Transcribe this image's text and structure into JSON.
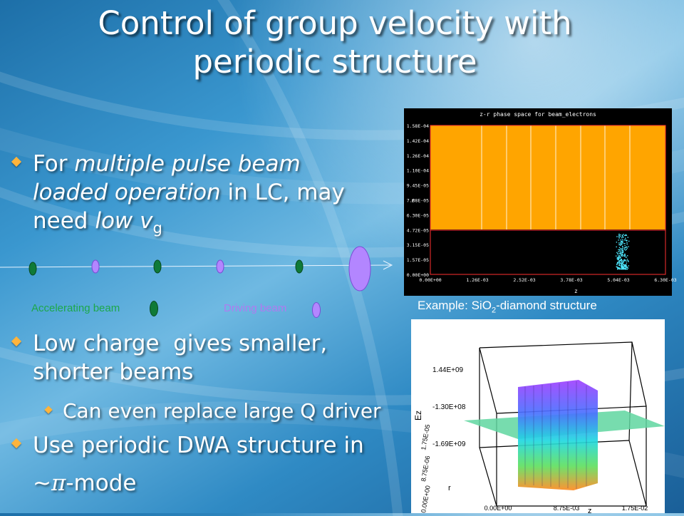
{
  "title": "Control of group velocity with periodic structure",
  "bullet1": {
    "prefix": "For ",
    "em1": "multiple pulse beam loaded operation",
    "mid": " in LC, may need ",
    "em2": "low v",
    "sub": "g"
  },
  "legend": {
    "accelerating": "Accelerating beam",
    "driving": "Driving beam"
  },
  "bullet2": "Low charge  gives smaller, shorter beams",
  "bullet2_sub": "Can even replace large Q driver",
  "bullet3_line1": "Use periodic DWA structure in",
  "bullet3_line2_tilde": "~",
  "bullet3_line2_pi": "π",
  "bullet3_line2_rest": "-mode",
  "plot1": {
    "title": "z-r phase space for beam_electrons",
    "ylabel": "r",
    "xlabel": "z",
    "yticks": [
      "1.58E-04",
      "1.42E-04",
      "1.26E-04",
      "1.10E-04",
      "9.45E-05",
      "7.88E-05",
      "6.30E-05",
      "4.72E-05",
      "3.15E-05",
      "1.57E-05",
      "0.00E+00"
    ],
    "xticks": [
      "0.00E+00",
      "1.26E-03",
      "2.52E-03",
      "3.78E-03",
      "5.04E-03",
      "6.30E-03"
    ]
  },
  "caption_prefix": "Example: SiO",
  "caption_sub": "2",
  "caption_suffix": "-diamond structure",
  "plot2": {
    "ez_label": "Ez",
    "r_label": "r",
    "z_label": "z",
    "ez_ticks": [
      "1.44E+09",
      "-1.30E+08",
      "-1.69E+09"
    ],
    "r_ticks": [
      "1.75E-05",
      "8.75E-06",
      "0.00E+00"
    ],
    "z_ticks": [
      "0.00E+00",
      "8.75E-03",
      "1.75E-02"
    ],
    "colors": {
      "orange": "#ffa500",
      "cyan": "#00e0e0",
      "purple": "#a040ff"
    }
  }
}
